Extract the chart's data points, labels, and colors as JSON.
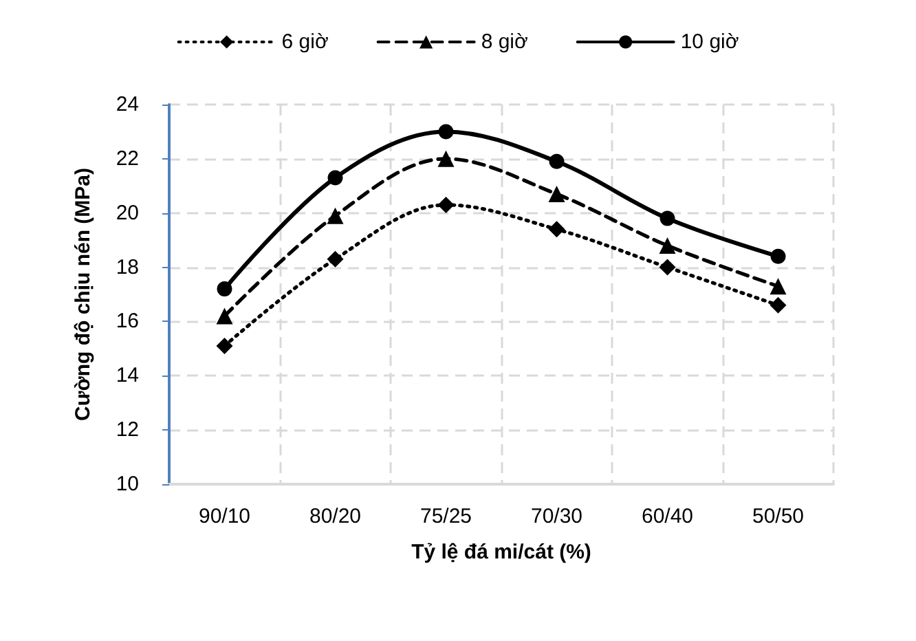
{
  "chart_data": {
    "type": "line",
    "xlabel": "Tỷ lệ đá mi/cát (%)",
    "ylabel": "Cường độ chịu nén (MPa)",
    "categories": [
      "90/10",
      "80/20",
      "75/25",
      "70/30",
      "60/40",
      "50/50"
    ],
    "series": [
      {
        "name": "6 giờ",
        "color": "#000000",
        "marker": "diamond",
        "line_style": "dotted",
        "values": [
          15.1,
          18.3,
          20.3,
          19.4,
          18.0,
          16.6
        ]
      },
      {
        "name": "8 giờ",
        "color": "#000000",
        "marker": "triangle",
        "line_style": "dashed",
        "values": [
          16.2,
          19.9,
          22.0,
          20.7,
          18.8,
          17.3
        ]
      },
      {
        "name": "10 giờ",
        "color": "#000000",
        "marker": "circle",
        "line_style": "solid",
        "values": [
          17.2,
          21.3,
          23.0,
          21.9,
          19.8,
          18.4
        ]
      }
    ],
    "ylim": [
      10,
      24
    ],
    "yticks": [
      10,
      12,
      14,
      16,
      18,
      20,
      22,
      24
    ],
    "grid": true,
    "legend": "top"
  }
}
